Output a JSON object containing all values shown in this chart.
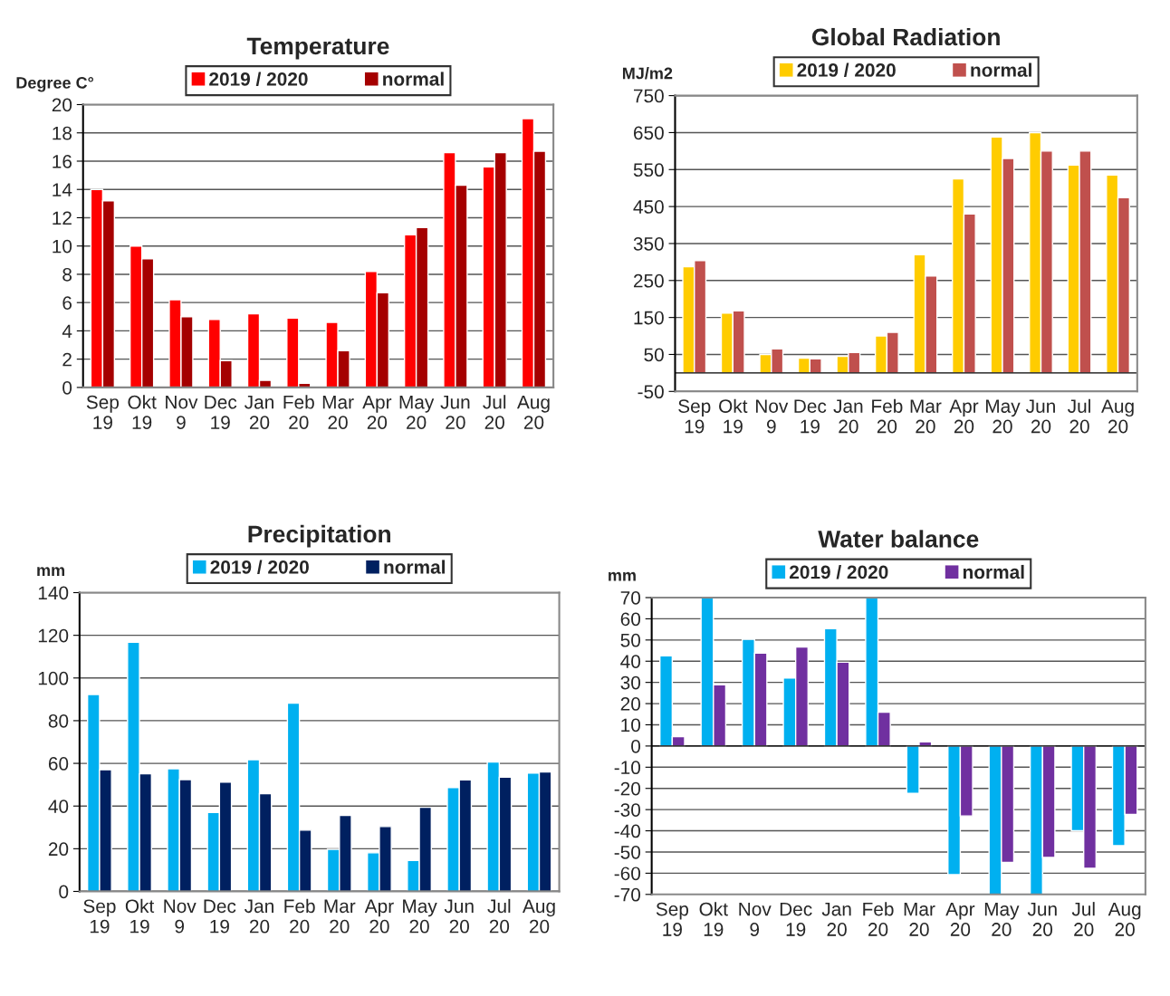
{
  "chart_data": [
    {
      "type": "bar",
      "title": "Temperature",
      "ylabel": "Degree C°",
      "categories": [
        "Sep\n19",
        "Okt\n19",
        "Nov\n9",
        "Dec\n19",
        "Jan\n20",
        "Feb\n20",
        "Mar\n20",
        "Apr\n20",
        "May\n20",
        "Jun\n20",
        "Jul\n20",
        "Aug\n20"
      ],
      "series": [
        {
          "name": "2019 / 2020",
          "color": "#ff0000",
          "values": [
            14.0,
            10.0,
            6.2,
            4.8,
            5.2,
            4.9,
            4.6,
            8.2,
            10.8,
            16.6,
            15.6,
            19.0
          ]
        },
        {
          "name": "normal",
          "color": "#a50000",
          "values": [
            13.2,
            9.1,
            5.0,
            1.9,
            0.5,
            0.3,
            2.6,
            6.7,
            11.3,
            14.3,
            16.6,
            16.7
          ]
        }
      ],
      "ylim": [
        0,
        20
      ],
      "yticks": [
        0,
        2,
        4,
        6,
        8,
        10,
        12,
        14,
        16,
        18,
        20
      ],
      "grid": "y",
      "legend": "top"
    },
    {
      "type": "bar",
      "title": "Global Radiation",
      "ylabel": "MJ/m2",
      "categories": [
        "Sep\n19",
        "Okt\n19",
        "Nov\n9",
        "Dec\n19",
        "Jan\n20",
        "Feb\n20",
        "Mar\n20",
        "Apr\n20",
        "May\n20",
        "Jun\n20",
        "Jul\n20",
        "Aug\n20"
      ],
      "series": [
        {
          "name": "2019 / 2020",
          "color": "#ffcc00",
          "values": [
            287,
            162,
            50,
            40,
            45,
            100,
            320,
            525,
            638,
            650,
            562,
            535
          ]
        },
        {
          "name": "normal",
          "color": "#c0504d",
          "values": [
            304,
            168,
            65,
            38,
            55,
            110,
            262,
            430,
            580,
            600,
            600,
            474
          ]
        }
      ],
      "ylim": [
        -50,
        750
      ],
      "yticks": [
        -50,
        50,
        150,
        250,
        350,
        450,
        550,
        650,
        750
      ],
      "grid": "y",
      "legend": "top"
    },
    {
      "type": "bar",
      "title": "Precipitation",
      "ylabel": "mm",
      "categories": [
        "Sep\n19",
        "Okt\n19",
        "Nov\n9",
        "Dec\n19",
        "Jan\n20",
        "Feb\n20",
        "Mar\n20",
        "Apr\n20",
        "May\n20",
        "Jun\n20",
        "Jul\n20",
        "Aug\n20"
      ],
      "series": [
        {
          "name": "2019 / 2020",
          "color": "#00b0f0",
          "values": [
            92.3,
            116.7,
            57.5,
            37,
            61.7,
            88.2,
            19.7,
            18.1,
            14.5,
            48.7,
            60.6,
            55.4
          ]
        },
        {
          "name": "normal",
          "color": "#002060",
          "values": [
            57,
            55.1,
            52.4,
            51.2,
            45.8,
            28.7,
            35.6,
            30.4,
            39.4,
            52.3,
            53.5,
            56
          ]
        }
      ],
      "ylim": [
        0,
        140
      ],
      "yticks": [
        0,
        20,
        40,
        60,
        80,
        100,
        120,
        140
      ],
      "grid": "y",
      "legend": "top"
    },
    {
      "type": "bar",
      "title": "Water balance",
      "ylabel": "mm",
      "categories": [
        "Sep\n19",
        "Okt\n19",
        "Nov\n9",
        "Dec\n19",
        "Jan\n20",
        "Feb\n20",
        "Mar\n20",
        "Apr\n20",
        "May\n20",
        "Jun\n20",
        "Jul\n20",
        "Aug\n20"
      ],
      "series": [
        {
          "name": "2019 / 2020",
          "color": "#00b0f0",
          "values": [
            42.5,
            70,
            50.3,
            32.1,
            55.4,
            70,
            -22.3,
            -60.7,
            -70,
            -70,
            -40,
            -47
          ]
        },
        {
          "name": "normal",
          "color": "#7030a0",
          "values": [
            4.4,
            28.9,
            43.8,
            46.7,
            39.5,
            15.9,
            2,
            -33,
            -54.9,
            -52.6,
            -57.7,
            -32.3
          ]
        }
      ],
      "ylim": [
        -70,
        70
      ],
      "yticks": [
        -70,
        -60,
        -50,
        -40,
        -30,
        -20,
        -10,
        0,
        10,
        20,
        30,
        40,
        50,
        60,
        70
      ],
      "grid": "y",
      "legend": "top"
    }
  ]
}
